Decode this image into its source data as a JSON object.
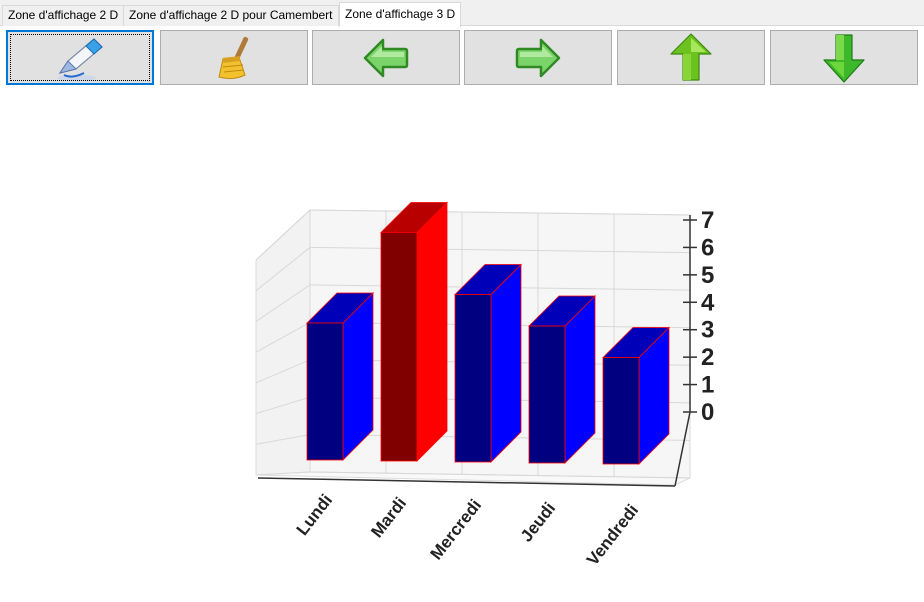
{
  "tabs": [
    {
      "label": "Zone d'affichage 2 D",
      "active": false
    },
    {
      "label": "Zone d'affichage 2 D pour Camembert",
      "active": false
    },
    {
      "label": "Zone d'affichage 3 D",
      "active": true
    }
  ],
  "toolbar": {
    "buttons": [
      {
        "name": "edit-button",
        "icon": "pencil-eraser-icon"
      },
      {
        "name": "clear-button",
        "icon": "broom-icon"
      },
      {
        "name": "previous-button",
        "icon": "arrow-left-icon"
      },
      {
        "name": "next-button",
        "icon": "arrow-right-icon"
      },
      {
        "name": "up-button",
        "icon": "arrow-up-icon"
      },
      {
        "name": "down-button",
        "icon": "arrow-down-icon"
      }
    ]
  },
  "chart_data": {
    "type": "bar",
    "style": "3d",
    "categories": [
      "Lundi",
      "Mardi",
      "Mercredi",
      "Jeudi",
      "Vendredi"
    ],
    "values": [
      4,
      7,
      5,
      4,
      3
    ],
    "highlight_index": 1,
    "ylim": [
      0,
      7
    ],
    "yticks": [
      "0",
      "1",
      "2",
      "3",
      "4",
      "5",
      "6",
      "7"
    ],
    "grid": true,
    "colors": {
      "bar_front": "#000080",
      "bar_side": "#0000ff",
      "bar_top": "#0000b8",
      "highlight_front": "#800000",
      "highlight_side": "#ff0000",
      "highlight_top": "#b80000",
      "edge": "#ff0000"
    }
  }
}
